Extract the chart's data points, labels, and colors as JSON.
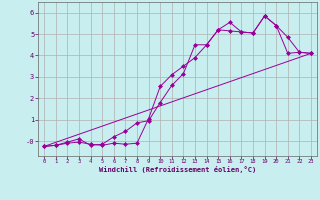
{
  "background_color": "#c8eef0",
  "grid_color": "#b0b0b0",
  "line_color": "#990099",
  "xlabel": "Windchill (Refroidissement éolien,°C)",
  "xlim": [
    -0.5,
    23.5
  ],
  "ylim": [
    -0.7,
    6.5
  ],
  "yticks": [
    0,
    1,
    2,
    3,
    4,
    5,
    6
  ],
  "ytick_labels": [
    "-0",
    "1",
    "2",
    "3",
    "4",
    "5",
    "6"
  ],
  "xticks": [
    0,
    1,
    2,
    3,
    4,
    5,
    6,
    7,
    8,
    9,
    10,
    11,
    12,
    13,
    14,
    15,
    16,
    17,
    18,
    19,
    20,
    21,
    22,
    23
  ],
  "series1_x": [
    0,
    1,
    2,
    3,
    4,
    5,
    6,
    7,
    8,
    9,
    10,
    11,
    12,
    13,
    14,
    15,
    16,
    17,
    18,
    19,
    20,
    21,
    22,
    23
  ],
  "series1_y": [
    -0.25,
    -0.2,
    -0.05,
    0.1,
    -0.2,
    -0.15,
    0.2,
    0.45,
    0.85,
    0.95,
    1.8,
    2.6,
    3.15,
    4.5,
    4.5,
    5.2,
    5.55,
    5.1,
    5.05,
    5.85,
    5.4,
    4.85,
    4.15,
    4.1
  ],
  "series2_x": [
    0,
    1,
    2,
    3,
    4,
    5,
    6,
    7,
    8,
    9,
    10,
    11,
    12,
    13,
    14,
    15,
    16,
    17,
    18,
    19,
    20,
    21,
    22,
    23
  ],
  "series2_y": [
    -0.25,
    -0.2,
    -0.1,
    -0.05,
    -0.15,
    -0.2,
    -0.1,
    -0.15,
    -0.1,
    1.05,
    2.55,
    3.1,
    3.5,
    3.9,
    4.5,
    5.2,
    5.15,
    5.1,
    5.05,
    5.85,
    5.4,
    4.1,
    4.15,
    4.1
  ],
  "series3_x": [
    0,
    23
  ],
  "series3_y": [
    -0.25,
    4.1
  ]
}
